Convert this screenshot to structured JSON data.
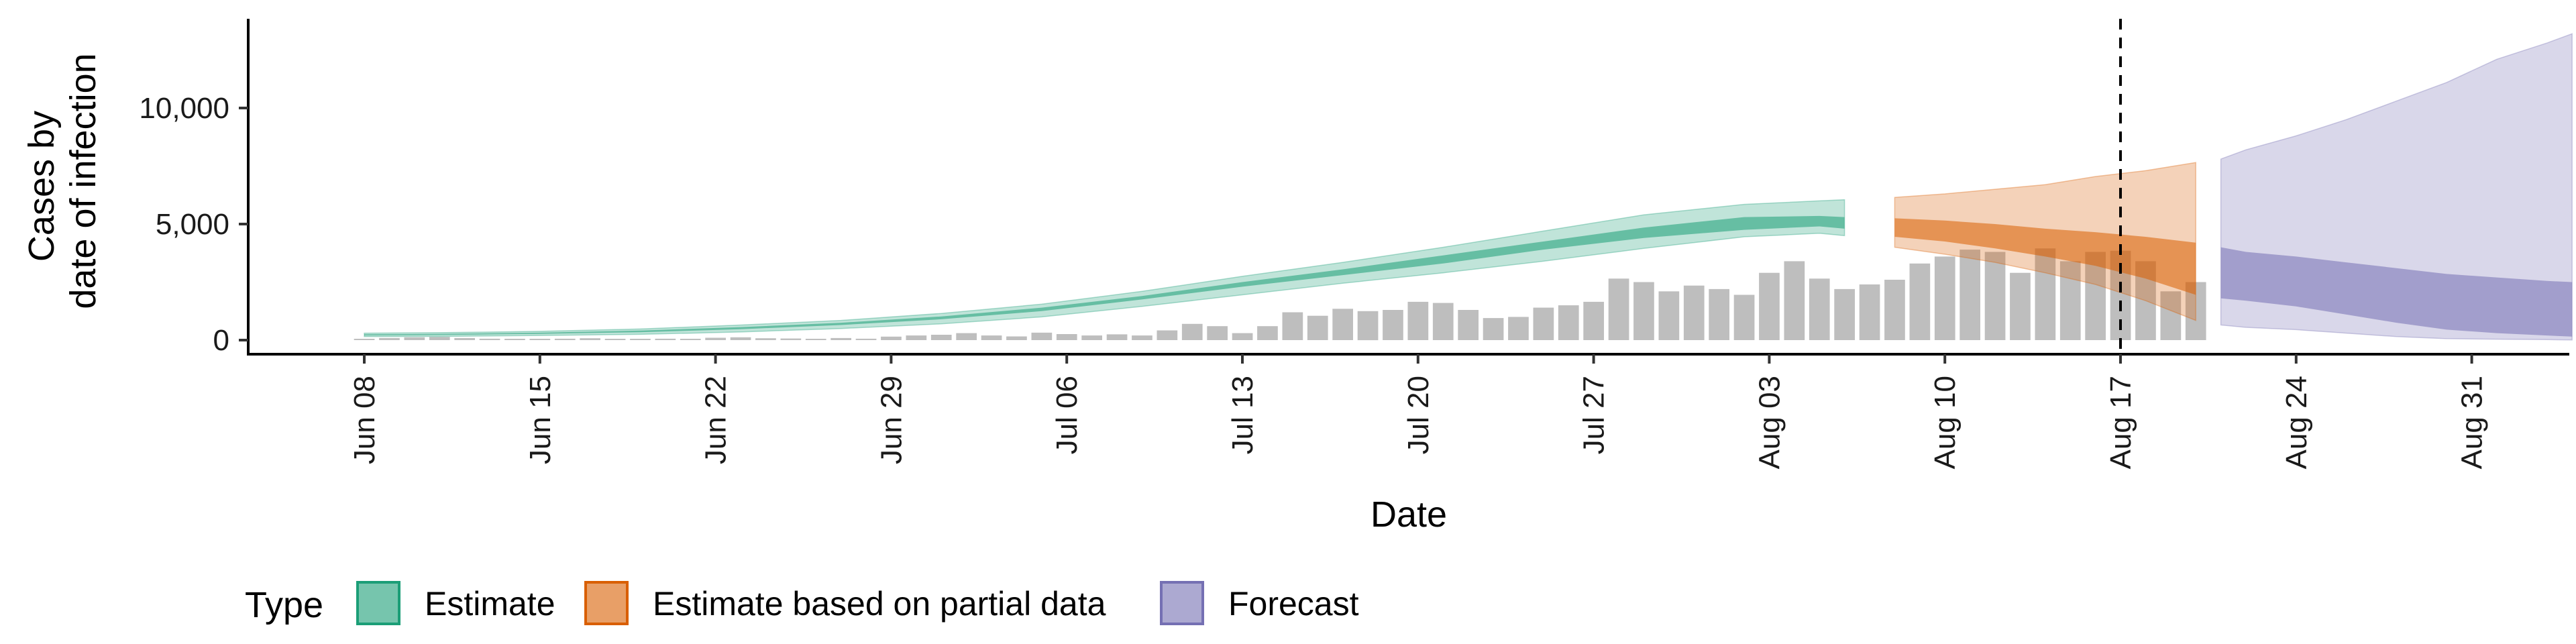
{
  "chart_data": {
    "type": "area",
    "title": "",
    "xlabel": "Date",
    "ylabel_lines": [
      "Cases by",
      "date of infection"
    ],
    "y_ticks": [
      0,
      5000,
      10000
    ],
    "y_tick_labels": [
      "0",
      "5,000",
      "10,000"
    ],
    "ylim": [
      -500,
      13800
    ],
    "x_tick_labels": [
      "Jun 08",
      "Jun 15",
      "Jun 22",
      "Jun 29",
      "Jul 06",
      "Jul 13",
      "Jul 20",
      "Jul 27",
      "Aug 03",
      "Aug 10",
      "Aug 17",
      "Aug 24",
      "Aug 31"
    ],
    "x_start_label": "Jun 08",
    "forecast_start_label": "Aug 17",
    "legend": {
      "title": "Type",
      "position": "bottom-left",
      "items": [
        {
          "name": "Estimate",
          "color": "#1b9e77"
        },
        {
          "name": "Estimate based on partial data",
          "color": "#d95f02"
        },
        {
          "name": "Forecast",
          "color": "#7570b3"
        }
      ]
    },
    "observed_cases_color": "#bebebe",
    "observed_cases": [
      [
        7,
        30
      ],
      [
        8,
        90
      ],
      [
        9,
        120
      ],
      [
        10,
        140
      ],
      [
        11,
        90
      ],
      [
        12,
        60
      ],
      [
        13,
        40
      ],
      [
        14,
        50
      ],
      [
        15,
        60
      ],
      [
        16,
        80
      ],
      [
        17,
        50
      ],
      [
        18,
        40
      ],
      [
        19,
        60
      ],
      [
        20,
        50
      ],
      [
        21,
        100
      ],
      [
        22,
        120
      ],
      [
        23,
        80
      ],
      [
        24,
        70
      ],
      [
        25,
        50
      ],
      [
        26,
        90
      ],
      [
        27,
        60
      ],
      [
        28,
        150
      ],
      [
        29,
        200
      ],
      [
        30,
        230
      ],
      [
        31,
        300
      ],
      [
        32,
        200
      ],
      [
        33,
        160
      ],
      [
        34,
        320
      ],
      [
        35,
        260
      ],
      [
        36,
        200
      ],
      [
        37,
        250
      ],
      [
        38,
        200
      ],
      [
        39,
        420
      ],
      [
        40,
        700
      ],
      [
        41,
        600
      ],
      [
        42,
        300
      ],
      [
        43,
        600
      ],
      [
        44,
        1200
      ],
      [
        45,
        1050
      ],
      [
        46,
        1350
      ],
      [
        47,
        1250
      ],
      [
        48,
        1300
      ],
      [
        49,
        1650
      ],
      [
        50,
        1600
      ],
      [
        51,
        1300
      ],
      [
        52,
        950
      ],
      [
        53,
        1000
      ],
      [
        54,
        1400
      ],
      [
        55,
        1500
      ],
      [
        56,
        1650
      ],
      [
        57,
        2650
      ],
      [
        58,
        2500
      ],
      [
        59,
        2100
      ],
      [
        60,
        2350
      ],
      [
        61,
        2200
      ],
      [
        62,
        1950
      ],
      [
        63,
        2900
      ],
      [
        64,
        3400
      ],
      [
        65,
        2650
      ],
      [
        66,
        2200
      ],
      [
        67,
        2400
      ],
      [
        68,
        2600
      ],
      [
        69,
        3300
      ],
      [
        70,
        3600
      ],
      [
        71,
        3900
      ],
      [
        72,
        3800
      ],
      [
        73,
        2900
      ],
      [
        74,
        3950
      ],
      [
        75,
        3400
      ],
      [
        76,
        3800
      ],
      [
        77,
        3850
      ],
      [
        78,
        3400
      ],
      [
        79,
        2100
      ],
      [
        80,
        2500
      ]
    ],
    "series": [
      {
        "name": "Estimate",
        "color": "#1b9e77",
        "x": [
          7,
          10,
          14,
          18,
          22,
          26,
          30,
          34,
          38,
          42,
          46,
          50,
          54,
          58,
          62,
          65,
          66
        ],
        "lower90": [
          150,
          160,
          200,
          250,
          350,
          500,
          700,
          1000,
          1450,
          1950,
          2450,
          2900,
          3400,
          3950,
          4450,
          4600,
          4500
        ],
        "upper90": [
          300,
          320,
          380,
          480,
          650,
          850,
          1150,
          1550,
          2100,
          2750,
          3350,
          4000,
          4700,
          5400,
          5850,
          6000,
          6050
        ],
        "lower50": [
          200,
          220,
          270,
          340,
          470,
          650,
          900,
          1250,
          1750,
          2300,
          2800,
          3300,
          3900,
          4400,
          4750,
          4900,
          4800
        ],
        "upper50": [
          250,
          270,
          320,
          410,
          560,
          750,
          1020,
          1400,
          1900,
          2500,
          3050,
          3650,
          4250,
          4850,
          5300,
          5350,
          5300
        ]
      },
      {
        "name": "Estimate based on partial data",
        "color": "#d95f02",
        "x": [
          68,
          70,
          72,
          74,
          76,
          78,
          80
        ],
        "lower90": [
          4000,
          3700,
          3350,
          2900,
          2400,
          1700,
          850
        ],
        "upper90": [
          6150,
          6300,
          6500,
          6700,
          7050,
          7300,
          7650
        ],
        "lower50": [
          4450,
          4250,
          3950,
          3600,
          3200,
          2650,
          1950
        ],
        "upper50": [
          5250,
          5150,
          5000,
          4800,
          4650,
          4450,
          4200
        ]
      },
      {
        "name": "Forecast",
        "color": "#7570b3",
        "x": [
          81,
          82,
          84,
          86,
          88,
          90,
          92,
          94,
          95
        ],
        "lower90": [
          650,
          550,
          450,
          300,
          150,
          60,
          40,
          20,
          10
        ],
        "upper90": [
          7800,
          8200,
          8800,
          9500,
          10300,
          11100,
          12100,
          12800,
          13200
        ],
        "lower50": [
          1800,
          1700,
          1450,
          1100,
          750,
          450,
          300,
          200,
          150
        ],
        "upper50": [
          4000,
          3800,
          3600,
          3350,
          3100,
          2850,
          2700,
          2550,
          2500
        ]
      }
    ]
  }
}
